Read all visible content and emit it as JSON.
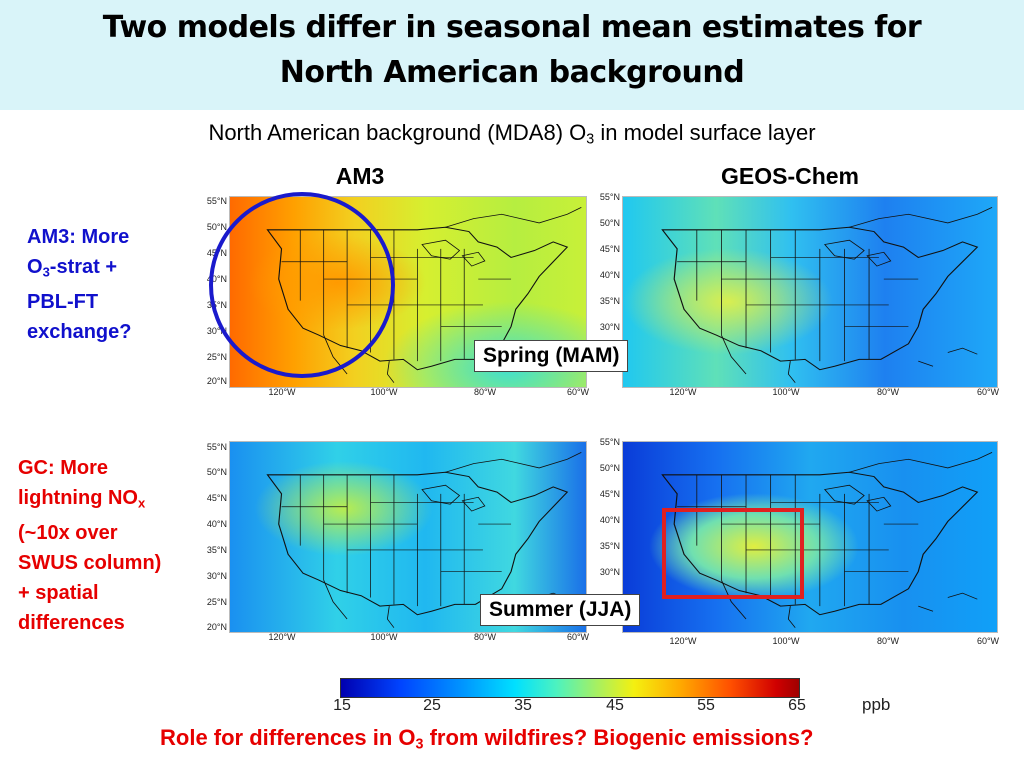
{
  "title": {
    "line1": "Two models differ in seasonal mean estimates for",
    "line2": "North American background"
  },
  "subtitle": {
    "pre": "North American background (MDA8) O",
    "sub": "3",
    "post": " in model surface layer"
  },
  "columns": {
    "left": "AM3",
    "right": "GEOS-Chem"
  },
  "notes": {
    "am3": {
      "line1": "AM3: More",
      "line2_pre": "O",
      "line2_sub": "3",
      "line2_post": "-strat +",
      "line3": "PBL-FT",
      "line4": "exchange?",
      "color": "#1010cc"
    },
    "gc": {
      "line1": "GC: More",
      "line2_pre": "lightning NO",
      "line2_sub": "x",
      "line3": "(~10x over",
      "line4": "SWUS column)",
      "line5": "+ spatial",
      "line6": "differences",
      "color": "#e60000"
    }
  },
  "seasons": {
    "spring": "Spring (MAM)",
    "summer": "Summer (JJA)"
  },
  "lat_labels_top": [
    "55°N",
    "50°N",
    "45°N",
    "40°N",
    "35°N",
    "30°N",
    "25°N",
    "20°N"
  ],
  "lat_labels_bottom": [
    "55°N",
    "50°N",
    "45°N",
    "40°N",
    "35°N",
    "30°N",
    "25°N",
    "20°N"
  ],
  "lon_labels": [
    "120°W",
    "100°W",
    "80°W",
    "60°W"
  ],
  "colorbar": {
    "ticks": [
      "15",
      "25",
      "35",
      "45",
      "55",
      "65"
    ],
    "unit": "ppb"
  },
  "bottom_question": {
    "pre": "Role for differences in O",
    "sub": "3",
    "post": " from wildfires? Biogenic emissions?"
  },
  "colors": {
    "title_band": "#d9f4f9",
    "circle": "#1a1acc",
    "box": "#e02020"
  }
}
